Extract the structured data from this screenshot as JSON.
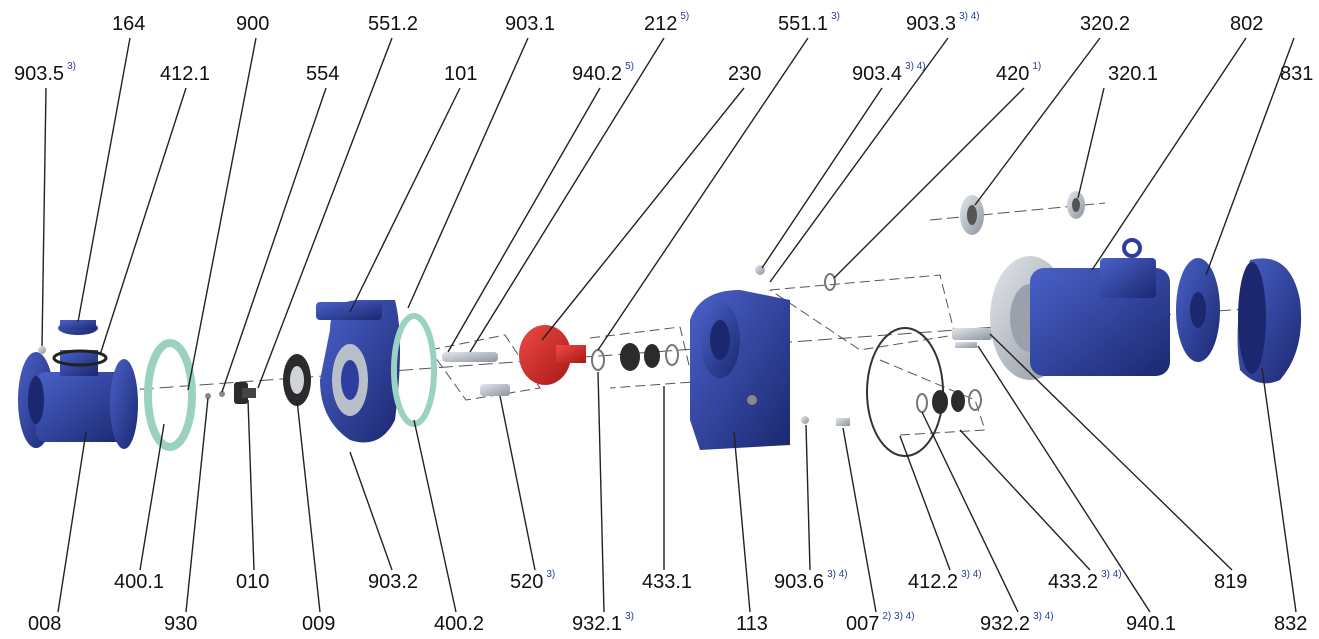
{
  "colors": {
    "pump_blue": "#2c3e9e",
    "pump_blue_dark": "#1b2870",
    "impeller_red": "#d42a2a",
    "gasket_green": "#9ad1c0",
    "metal_grey": "#b9bfc8",
    "label_text": "#111111",
    "footnote_blue": "#2a3a9c",
    "leader_line": "#222222"
  },
  "labels": {
    "l903_5": {
      "num": "903.5",
      "note": "3)"
    },
    "l164": {
      "num": "164",
      "note": ""
    },
    "l412_1": {
      "num": "412.1",
      "note": ""
    },
    "l900": {
      "num": "900",
      "note": ""
    },
    "l554": {
      "num": "554",
      "note": ""
    },
    "l551_2": {
      "num": "551.2",
      "note": ""
    },
    "l101": {
      "num": "101",
      "note": ""
    },
    "l903_1": {
      "num": "903.1",
      "note": ""
    },
    "l940_2": {
      "num": "940.2",
      "note": "5)"
    },
    "l212": {
      "num": "212",
      "note": "5)"
    },
    "l230": {
      "num": "230",
      "note": ""
    },
    "l551_1": {
      "num": "551.1",
      "note": "3)"
    },
    "l903_4": {
      "num": "903.4",
      "note": "3) 4)"
    },
    "l903_3": {
      "num": "903.3",
      "note": "3) 4)"
    },
    "l420": {
      "num": "420",
      "note": "1)"
    },
    "l320_2": {
      "num": "320.2",
      "note": ""
    },
    "l320_1": {
      "num": "320.1",
      "note": ""
    },
    "l802": {
      "num": "802",
      "note": ""
    },
    "l831": {
      "num": "831",
      "note": ""
    },
    "l008": {
      "num": "008",
      "note": ""
    },
    "l400_1": {
      "num": "400.1",
      "note": ""
    },
    "l930": {
      "num": "930",
      "note": ""
    },
    "l010": {
      "num": "010",
      "note": ""
    },
    "l009": {
      "num": "009",
      "note": ""
    },
    "l903_2": {
      "num": "903.2",
      "note": ""
    },
    "l400_2": {
      "num": "400.2",
      "note": ""
    },
    "l520": {
      "num": "520",
      "note": "3)"
    },
    "l932_1": {
      "num": "932.1",
      "note": "3)"
    },
    "l433_1": {
      "num": "433.1",
      "note": ""
    },
    "l113": {
      "num": "113",
      "note": ""
    },
    "l903_6": {
      "num": "903.6",
      "note": "3) 4)"
    },
    "l007": {
      "num": "007",
      "note": "2) 3) 4)"
    },
    "l412_2": {
      "num": "412.2",
      "note": "3) 4)"
    },
    "l932_2": {
      "num": "932.2",
      "note": "3) 4)"
    },
    "l433_2": {
      "num": "433.2",
      "note": "3) 4)"
    },
    "l940_1": {
      "num": "940.1",
      "note": ""
    },
    "l819": {
      "num": "819",
      "note": ""
    },
    "l832": {
      "num": "832",
      "note": ""
    }
  }
}
